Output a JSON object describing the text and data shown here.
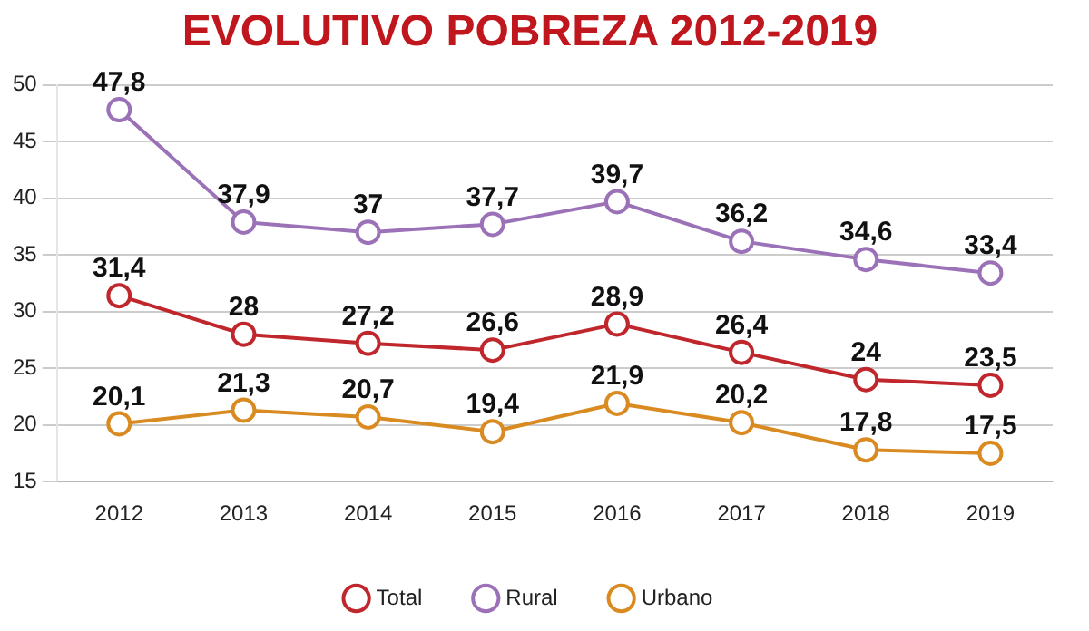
{
  "chart_data": {
    "type": "line",
    "title": "EVOLUTIVO POBREZA 2012-2019",
    "categories": [
      "2012",
      "2013",
      "2014",
      "2015",
      "2016",
      "2017",
      "2018",
      "2019"
    ],
    "series": [
      {
        "name": "Total",
        "color": "#c0272d",
        "values": [
          31.4,
          28,
          27.2,
          26.6,
          28.9,
          26.4,
          24,
          23.5
        ],
        "value_labels": [
          "31,4",
          "28",
          "27,2",
          "26,6",
          "28,9",
          "26,4",
          "24",
          "23,5"
        ]
      },
      {
        "name": "Rural",
        "color": "#9b72b8",
        "values": [
          47.8,
          37.9,
          37,
          37.7,
          39.7,
          36.2,
          34.6,
          33.4
        ],
        "value_labels": [
          "47,8",
          "37,9",
          "37",
          "37,7",
          "39,7",
          "36,2",
          "34,6",
          "33,4"
        ]
      },
      {
        "name": "Urbano",
        "color": "#d98b22",
        "values": [
          20.1,
          21.3,
          20.7,
          19.4,
          21.9,
          20.2,
          17.8,
          17.5
        ],
        "value_labels": [
          "20,1",
          "21,3",
          "20,7",
          "19,4",
          "21,9",
          "20,2",
          "17,8",
          "17,5"
        ]
      }
    ],
    "ylim": [
      15,
      50
    ],
    "yticks": [
      15,
      20,
      25,
      30,
      35,
      40,
      45,
      50
    ],
    "grid": "y",
    "legend": "bottom",
    "marker": "circle",
    "line_style": "solid"
  }
}
